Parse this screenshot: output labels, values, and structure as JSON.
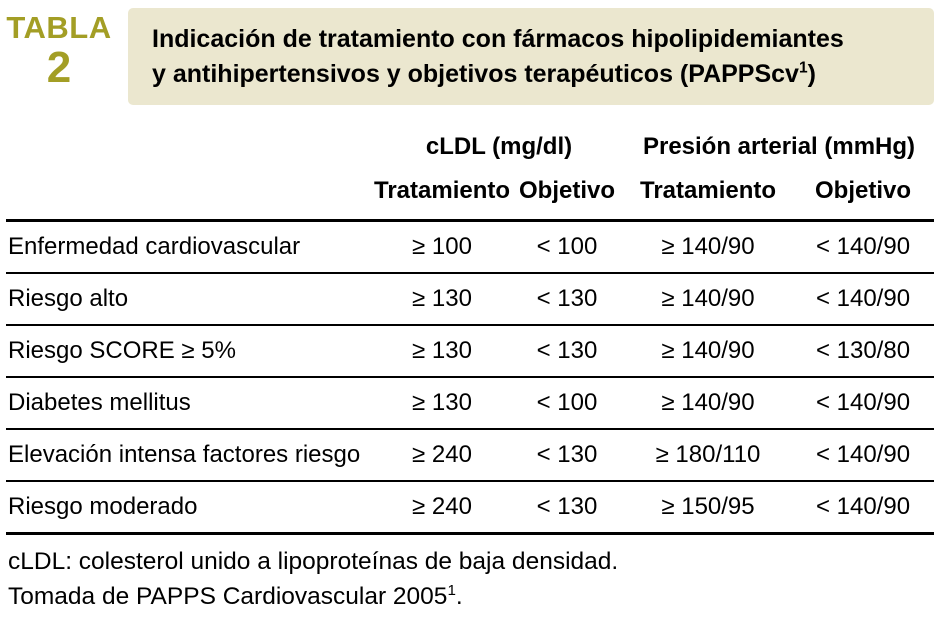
{
  "badge": {
    "word": "TABLA",
    "number": "2"
  },
  "title": {
    "line1": "Indicación de tratamiento con fármacos hipolipidemiantes",
    "line2": "y antihipertensivos y objetivos terapéuticos (PAPPScv",
    "sup": "1",
    "line2_end": ")"
  },
  "table": {
    "groups": [
      "cLDL (mg/dl)",
      "Presión arterial (mmHg)"
    ],
    "subheaders": [
      "Tratamiento",
      "Objetivo",
      "Tratamiento",
      "Objetivo"
    ],
    "rows": [
      {
        "label": "Enfermedad cardiovascular",
        "cells": [
          "≥ 100",
          "< 100",
          "≥ 140/90",
          "< 140/90"
        ]
      },
      {
        "label": "Riesgo alto",
        "cells": [
          "≥ 130",
          "< 130",
          "≥ 140/90",
          "< 140/90"
        ]
      },
      {
        "label": "Riesgo SCORE ≥ 5%",
        "cells": [
          "≥ 130",
          "< 130",
          "≥ 140/90",
          "< 130/80"
        ]
      },
      {
        "label": "Diabetes mellitus",
        "cells": [
          "≥ 130",
          "< 100",
          "≥ 140/90",
          "< 140/90"
        ]
      },
      {
        "label": "Elevación intensa factores riesgo",
        "cells": [
          "≥ 240",
          "< 130",
          "≥ 180/110",
          "< 140/90"
        ]
      },
      {
        "label": "Riesgo moderado",
        "cells": [
          "≥ 240",
          "< 130",
          "≥ 150/95",
          "< 140/90"
        ]
      }
    ]
  },
  "footnotes": {
    "line1": "cLDL: colesterol unido a lipoproteínas de baja densidad.",
    "line2": "Tomada de PAPPS Cardiovascular 2005",
    "line2_sup": "1",
    "line2_end": "."
  },
  "colors": {
    "accent_olive": "#A39E25",
    "title_background": "#EBE7CF",
    "text": "#000000",
    "rule": "#000000"
  }
}
